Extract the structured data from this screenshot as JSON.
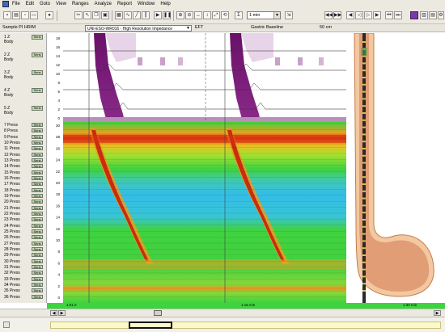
{
  "menu": [
    "File",
    "Edit",
    "Goto",
    "View",
    "Ranges",
    "Analyze",
    "Report",
    "Window",
    "Help"
  ],
  "toolbar": {
    "time_scale": "1 min",
    "tool_icons": [
      "save-icon",
      "print-icon",
      "cut-icon",
      "copy-icon",
      "pointer-icon",
      "measure-icon",
      "zoom-in-icon",
      "zoom-out-icon",
      "play-icon",
      "pause-icon",
      "rewind-icon",
      "fast-forward-icon",
      "settings-icon"
    ]
  },
  "info": {
    "sample": "Sample PI HRIM",
    "study": "UNI-ESO-WR016 - High Resolution Impedance",
    "mode": "EFT",
    "baseline": "Gastric Baseline",
    "distance": "50 cm"
  },
  "channels": {
    "impedance": [
      {
        "name": "1 Z",
        "sub": "Body"
      },
      {
        "name": "2 Z",
        "sub": "Body"
      },
      {
        "name": "3 Z",
        "sub": "Body"
      },
      {
        "name": "4 Z",
        "sub": "Body"
      },
      {
        "name": "5 Z",
        "sub": "Body"
      }
    ],
    "pressure": [
      "7 Press",
      "8 Press",
      "9 Press",
      "10 Press",
      "11 Press",
      "12 Press",
      "13 Press",
      "14 Press",
      "15 Press",
      "16 Press",
      "17 Press",
      "18 Press",
      "19 Press",
      "20 Press",
      "21 Press",
      "22 Press",
      "23 Press",
      "24 Press",
      "25 Press",
      "26 Press",
      "27 Press",
      "28 Press",
      "29 Press",
      "30 Press",
      "31 Press",
      "32 Press",
      "33 Press",
      "34 Press",
      "35 Press",
      "36 Press"
    ],
    "button_label": "Sens"
  },
  "plot": {
    "impedance_ticks": [
      "18",
      "16",
      "14",
      "12",
      "10",
      "8",
      "6",
      "4",
      "2",
      "0"
    ],
    "pressure_ticks": [
      "30",
      "28",
      "26",
      "24",
      "22",
      "20",
      "18",
      "16",
      "14",
      "12",
      "10",
      "8",
      "6",
      "4",
      "2",
      "0"
    ]
  },
  "status": {
    "left": "1:01.0",
    "mid": "1:15 min",
    "right": "1:30 min"
  },
  "colors": {
    "impedance_bolus": "#7a1f7a",
    "pressure_low": "#33c0e0",
    "pressure_mid": "#3fd23f",
    "pressure_high": "#e03010"
  }
}
